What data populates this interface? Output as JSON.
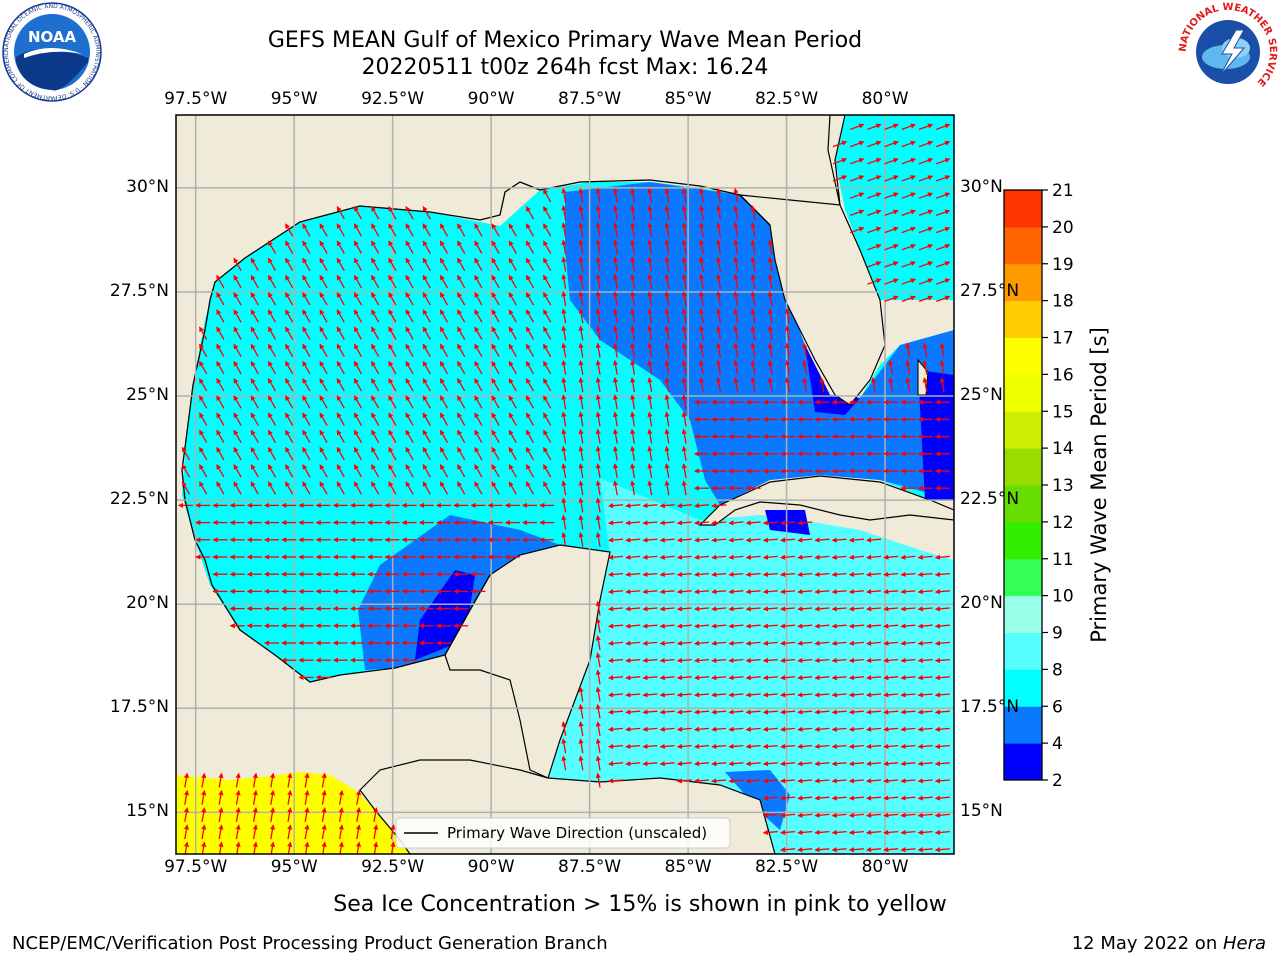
{
  "title_line1": "GEFS MEAN Gulf of Mexico Primary Wave Mean Period",
  "title_line2": "20220511 t00z 264h fcst   Max: 16.24",
  "map": {
    "lon_ticks": [
      "97.5°W",
      "95°W",
      "92.5°W",
      "90°W",
      "87.5°W",
      "85°W",
      "82.5°W",
      "80°W"
    ],
    "lat_ticks": [
      "30°N",
      "27.5°N",
      "25°N",
      "22.5°N",
      "20°N",
      "17.5°N",
      "15°N"
    ],
    "lon_range": [
      -98,
      -78.25
    ],
    "lat_range": [
      14,
      31.75
    ],
    "land_color": "#efebd8",
    "legend_label": "Primary Wave Direction (unscaled)",
    "arrow_color": "#ff0000"
  },
  "colorbar": {
    "label": "Primary Wave Mean Period [s]",
    "ticks": [
      "2",
      "4",
      "6",
      "8",
      "9",
      "10",
      "11",
      "12",
      "13",
      "14",
      "15",
      "16",
      "17",
      "18",
      "19",
      "20",
      "21"
    ],
    "colors": [
      "#0000ff",
      "#0a78ff",
      "#00ffff",
      "#55ffff",
      "#9affe8",
      "#33ff55",
      "#33ee00",
      "#66dd00",
      "#99dd00",
      "#ccee00",
      "#eeff00",
      "#ffff00",
      "#ffcc00",
      "#ff9900",
      "#ff6600",
      "#ff3300",
      "#ff0000"
    ]
  },
  "logos": {
    "noaa_text": "NOAA",
    "noaa_ring": "NATIONAL OCEANIC AND ATMOSPHERIC ADMINISTRATION · U.S. DEPARTMENT OF COMMERCE",
    "nws_ring": "NATIONAL WEATHER SERVICE"
  },
  "ice_note": "Sea Ice Concentration > 15% is shown in pink to yellow",
  "footer_left": "NCEP/EMC/Verification Post Processing Product Generation Branch",
  "footer_right_prefix": "12 May 2022 on ",
  "footer_right_host": "Hera"
}
